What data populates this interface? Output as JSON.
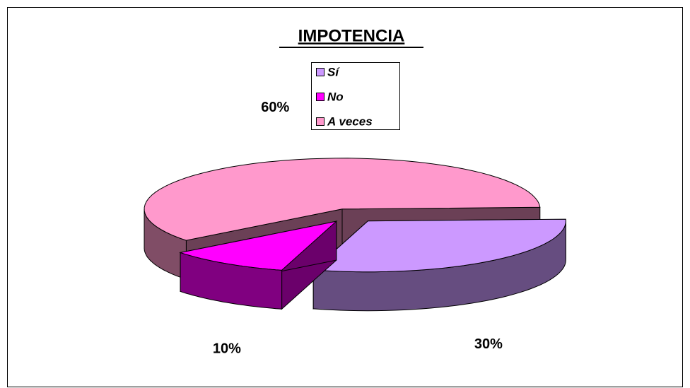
{
  "chart_data": {
    "type": "pie3d",
    "title": "IMPOTENCIA",
    "categories": [
      "Sí",
      "No",
      "A veces"
    ],
    "values": [
      30,
      10,
      60
    ],
    "value_labels": [
      "30%",
      "10%",
      "60%"
    ],
    "colors": [
      "#cc99ff",
      "#ff00ff",
      "#ff99cc"
    ],
    "legend": "top"
  }
}
